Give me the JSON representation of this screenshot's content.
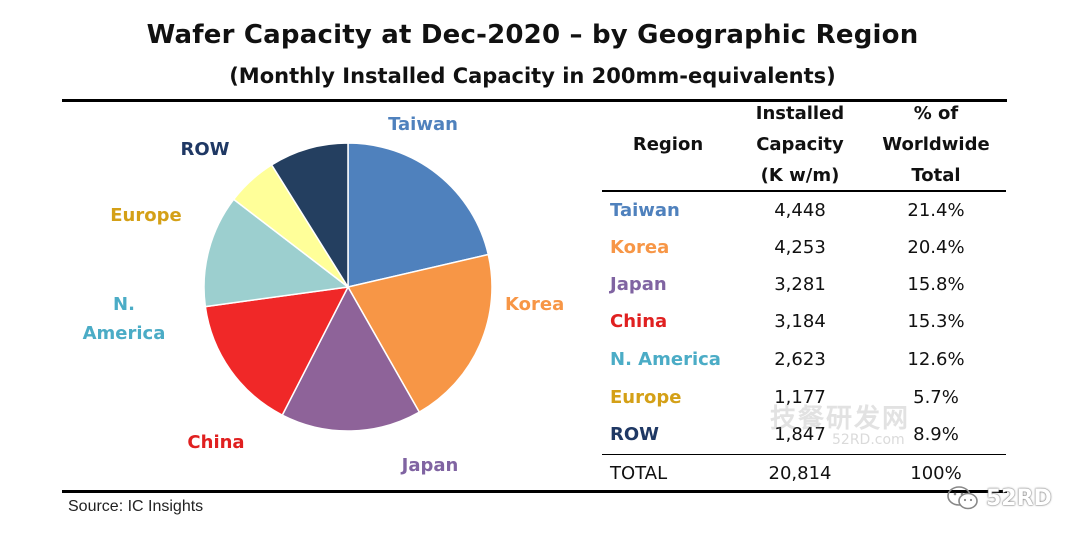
{
  "title": "Wafer Capacity at Dec-2020 – by Geographic Region",
  "subtitle": "(Monthly Installed Capacity in 200mm-equivalents)",
  "source": "Source:  IC Insights",
  "watermark": {
    "cn_text": "技餐研发网",
    "url_text": "52RD.com",
    "brand_text": "52RD",
    "icon": "wechat-icon"
  },
  "table": {
    "headers": {
      "region": "Region",
      "capacity": [
        "Installed",
        "Capacity",
        "(K w/m)"
      ],
      "pct": [
        "% of",
        "Worldwide",
        "Total"
      ]
    },
    "rows": [
      {
        "region": "Taiwan",
        "capacity": "4,448",
        "pct": "21.4%",
        "color": "#4F81BD"
      },
      {
        "region": "Korea",
        "capacity": "4,253",
        "pct": "20.4%",
        "color": "#F79646"
      },
      {
        "region": "Japan",
        "capacity": "3,281",
        "pct": "15.8%",
        "color": "#8064A2"
      },
      {
        "region": "China",
        "capacity": "3,184",
        "pct": "15.3%",
        "color": "#E02020"
      },
      {
        "region": "N. America",
        "capacity": "2,623",
        "pct": "12.6%",
        "color": "#4BACC6"
      },
      {
        "region": "Europe",
        "capacity": "1,177",
        "pct": "5.7%",
        "color": "#D4A017"
      },
      {
        "region": "ROW",
        "capacity": "1,847",
        "pct": "8.9%",
        "color": "#1F3864"
      }
    ],
    "total": {
      "region": "TOTAL",
      "capacity": "20,814",
      "pct": "100%"
    }
  },
  "chart_data": {
    "type": "pie",
    "title": "Wafer Capacity at Dec-2020 – by Geographic Region",
    "subtitle": "(Monthly Installed Capacity in 200mm-equivalents)",
    "start": "12 o'clock",
    "direction": "clockwise",
    "slices": [
      {
        "label": "Taiwan",
        "value": 21.4,
        "capacity_kwm": 4448,
        "fill": "#4F81BD",
        "label_color": "#4F81BD"
      },
      {
        "label": "Korea",
        "value": 20.4,
        "capacity_kwm": 4253,
        "fill": "#F79646",
        "label_color": "#F79646"
      },
      {
        "label": "Japan",
        "value": 15.8,
        "capacity_kwm": 3281,
        "fill": "#8E6399",
        "label_color": "#8064A2"
      },
      {
        "label": "China",
        "value": 15.3,
        "capacity_kwm": 3184,
        "fill": "#F02828",
        "label_color": "#E02020"
      },
      {
        "label": "N. America",
        "value": 12.6,
        "capacity_kwm": 2623,
        "fill": "#9CCFCF",
        "label_color": "#4BACC6"
      },
      {
        "label": "Europe",
        "value": 5.7,
        "capacity_kwm": 1177,
        "fill": "#FFFF99",
        "label_color": "#D4A017"
      },
      {
        "label": "ROW",
        "value": 8.9,
        "capacity_kwm": 1847,
        "fill": "#243F60",
        "label_color": "#1F3864"
      }
    ]
  }
}
